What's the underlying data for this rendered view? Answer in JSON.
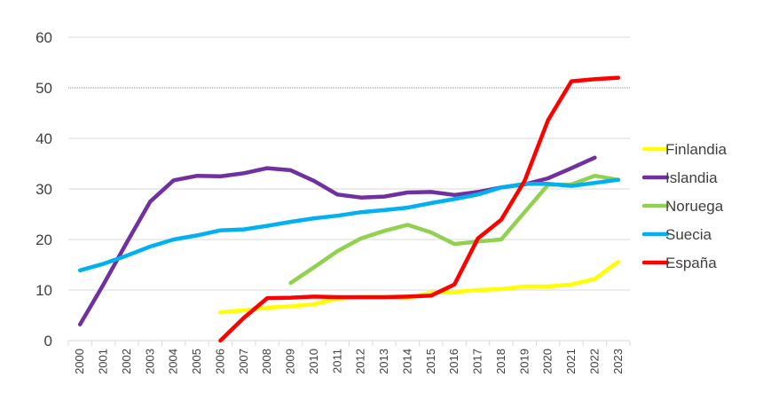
{
  "chart_data": {
    "type": "line",
    "title": "",
    "xlabel": "",
    "ylabel": "",
    "ylim": [
      0,
      60
    ],
    "yticks": [
      0,
      10,
      20,
      30,
      40,
      50,
      60
    ],
    "grid": true,
    "legend_position": "right",
    "x": [
      "2000",
      "2001",
      "2002",
      "2003",
      "2004",
      "2005",
      "2006",
      "2007",
      "2008",
      "2009",
      "2010",
      "2011",
      "2012",
      "2013",
      "2014",
      "2015",
      "2016",
      "2017",
      "2018",
      "2019",
      "2020",
      "2021",
      "2022",
      "2023"
    ],
    "series": [
      {
        "name": "Finlandia",
        "color": "#FFFF00",
        "values": [
          null,
          null,
          null,
          null,
          null,
          null,
          5.6,
          6.0,
          6.5,
          6.8,
          7.2,
          8.3,
          8.6,
          8.6,
          8.4,
          9.5,
          9.6,
          10.0,
          10.2,
          10.7,
          10.7,
          11.1,
          12.2,
          15.6
        ]
      },
      {
        "name": "Islandia",
        "color": "#7030A0",
        "values": [
          3.2,
          11.1,
          19.4,
          27.5,
          31.7,
          32.6,
          32.5,
          33.1,
          34.1,
          33.7,
          31.6,
          28.9,
          28.3,
          28.5,
          29.3,
          29.4,
          28.8,
          29.4,
          30.3,
          30.9,
          32.1,
          34.1,
          36.2,
          null
        ]
      },
      {
        "name": "Noruega",
        "color": "#92D050",
        "values": [
          null,
          null,
          null,
          null,
          null,
          null,
          null,
          null,
          null,
          11.4,
          14.5,
          17.7,
          20.2,
          21.7,
          22.9,
          21.4,
          19.1,
          19.6,
          20.0,
          25.4,
          30.8,
          30.9,
          32.6,
          31.8
        ]
      },
      {
        "name": "Suecia",
        "color": "#00B0F0",
        "values": [
          13.9,
          15.2,
          16.8,
          18.6,
          20.0,
          20.8,
          21.8,
          22.0,
          22.7,
          23.5,
          24.2,
          24.7,
          25.4,
          25.8,
          26.3,
          27.2,
          28.0,
          28.9,
          30.3,
          31.0,
          31.0,
          30.6,
          31.2,
          31.8
        ]
      },
      {
        "name": "España",
        "color": "#FF0000",
        "values": [
          null,
          null,
          null,
          null,
          null,
          null,
          0.0,
          4.5,
          8.4,
          8.5,
          8.7,
          8.6,
          8.6,
          8.6,
          8.7,
          8.9,
          11.1,
          20.2,
          23.9,
          31.6,
          43.6,
          51.3,
          51.7,
          52.0
        ]
      }
    ]
  }
}
